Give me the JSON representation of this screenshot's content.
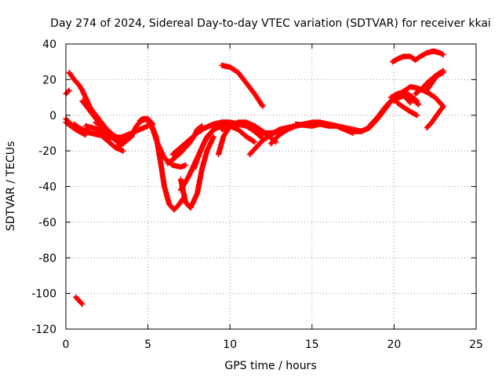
{
  "chart_data": {
    "type": "scatter",
    "title": "Day 274 of 2024, Sidereal Day-to-day VTEC variation (SDTVAR) for receiver kkai",
    "xlabel": "GPS time / hours",
    "ylabel": "SDTVAR / TECUs",
    "xlim": [
      0,
      25
    ],
    "ylim": [
      -120,
      40
    ],
    "xticks": [
      0,
      5,
      10,
      15,
      20,
      25
    ],
    "yticks": [
      -120,
      -100,
      -80,
      -60,
      -40,
      -20,
      0,
      20,
      40
    ],
    "grid": true,
    "legend": "none",
    "marker": "+",
    "color": "#ff0000",
    "tracks": [
      {
        "x": [
          0.0,
          0.2
        ],
        "y": [
          12,
          14
        ]
      },
      {
        "x": [
          0.2,
          0.5,
          0.8,
          1.0,
          1.2,
          1.5,
          2.0,
          2.5,
          3.0,
          3.3
        ],
        "y": [
          24,
          20,
          17,
          14,
          10,
          4,
          -2,
          -8,
          -12,
          -14
        ]
      },
      {
        "x": [
          0.0,
          0.3,
          0.6,
          1.0
        ],
        "y": [
          -2,
          -5,
          -7,
          -9
        ]
      },
      {
        "x": [
          0.0,
          0.3,
          0.6,
          1.0,
          1.2
        ],
        "y": [
          -4,
          -6,
          -8,
          -10,
          -11
        ]
      },
      {
        "x": [
          0.5,
          0.8,
          1.0,
          1.5,
          2.0,
          2.5,
          3.0,
          3.5,
          4.0,
          4.5,
          5.0
        ],
        "y": [
          -5,
          -7,
          -8,
          -10,
          -11,
          -12,
          -13,
          -12,
          -10,
          -8,
          -6
        ]
      },
      {
        "x": [
          1.0,
          1.5,
          2.0,
          2.5,
          3.0
        ],
        "y": [
          8,
          2,
          -4,
          -8,
          -12
        ]
      },
      {
        "x": [
          1.2,
          1.6,
          2.0,
          2.5,
          3.0,
          3.5,
          4.0
        ],
        "y": [
          -6,
          -7,
          -8,
          -10,
          -12,
          -13,
          -12
        ]
      },
      {
        "x": [
          1.8,
          2.2,
          2.6,
          3.0,
          3.5
        ],
        "y": [
          -4,
          -6,
          -10,
          -14,
          -16
        ]
      },
      {
        "x": [
          2.0,
          2.5,
          3.0,
          3.5
        ],
        "y": [
          -10,
          -14,
          -18,
          -20
        ]
      },
      {
        "x": [
          3.0,
          3.3,
          3.6,
          4.0,
          4.3,
          4.6,
          5.0,
          5.3
        ],
        "y": [
          -18,
          -17,
          -15,
          -12,
          -6,
          -3,
          -2,
          -5
        ]
      },
      {
        "x": [
          4.5,
          4.7,
          5.0,
          5.2,
          5.5,
          5.8,
          6.0,
          6.3,
          6.6,
          6.9,
          7.2
        ],
        "y": [
          -3,
          -2,
          -2,
          -5,
          -12,
          -28,
          -40,
          -50,
          -53,
          -50,
          -46
        ]
      },
      {
        "x": [
          5.0,
          5.3,
          5.6,
          6.0,
          6.5,
          7.0,
          7.3
        ],
        "y": [
          -3,
          -8,
          -16,
          -24,
          -28,
          -29,
          -28
        ]
      },
      {
        "x": [
          6.2,
          6.5,
          7.0,
          7.5,
          7.8,
          8.0,
          8.3
        ],
        "y": [
          -27,
          -25,
          -21,
          -16,
          -12,
          -8,
          -6
        ]
      },
      {
        "x": [
          6.5,
          7.0,
          7.5,
          8.0,
          8.5,
          9.0,
          9.5,
          10.0
        ],
        "y": [
          -22,
          -18,
          -14,
          -10,
          -7,
          -5,
          -4,
          -4
        ]
      },
      {
        "x": [
          7.0,
          7.3,
          7.6,
          8.0,
          8.3,
          8.6,
          9.0
        ],
        "y": [
          -36,
          -49,
          -52,
          -44,
          -30,
          -20,
          -12
        ]
      },
      {
        "x": [
          7.0,
          7.5,
          8.0,
          8.5,
          9.0,
          9.5
        ],
        "y": [
          -42,
          -34,
          -24,
          -14,
          -8,
          -4
        ]
      },
      {
        "x": [
          7.8,
          8.2,
          8.6,
          9.0,
          9.5,
          10.0,
          10.5,
          11.0,
          11.5
        ],
        "y": [
          -30,
          -20,
          -12,
          -8,
          -6,
          -6,
          -8,
          -12,
          -15
        ]
      },
      {
        "x": [
          8.5,
          9.0,
          9.5,
          10.0,
          10.5,
          11.0,
          11.5,
          12.0
        ],
        "y": [
          -7,
          -5,
          -4,
          -4,
          -5,
          -6,
          -9,
          -13
        ]
      },
      {
        "x": [
          9.3,
          9.6,
          10.0,
          10.5,
          11.0,
          11.5,
          12.0,
          12.4,
          12.8
        ],
        "y": [
          -22,
          -12,
          -6,
          -4,
          -4,
          -6,
          -9,
          -12,
          -15
        ]
      },
      {
        "x": [
          9.5,
          10.0,
          10.5,
          11.0,
          11.5
        ],
        "y": [
          -8,
          -6,
          -5,
          -5,
          -6
        ]
      },
      {
        "x": [
          9.5,
          10.0,
          10.5,
          11.0,
          11.5,
          12.0
        ],
        "y": [
          28,
          27,
          24,
          18,
          12,
          5
        ]
      },
      {
        "x": [
          11.2,
          11.6,
          12.0,
          12.5,
          13.0,
          14.0
        ],
        "y": [
          -22,
          -18,
          -14,
          -11,
          -8,
          -6
        ]
      },
      {
        "x": [
          11.5,
          12.0,
          12.5,
          13.0,
          13.5,
          14.0,
          14.5,
          15.0,
          15.5,
          16.0,
          16.5,
          17.0,
          17.5,
          18.0
        ],
        "y": [
          -9,
          -10,
          -10,
          -9,
          -7,
          -6,
          -5,
          -5,
          -5,
          -6,
          -6,
          -7,
          -8,
          -9
        ]
      },
      {
        "x": [
          12.5,
          13.0,
          13.5,
          14.0,
          14.5,
          15.0,
          15.5,
          16.0,
          16.5,
          17.0,
          17.5,
          18.0,
          18.5
        ],
        "y": [
          -16,
          -11,
          -8,
          -6,
          -5,
          -4,
          -4,
          -5,
          -6,
          -8,
          -9,
          -9,
          -7
        ]
      },
      {
        "x": [
          14.0,
          15.0,
          15.5,
          16.0,
          16.5,
          17.0,
          17.5
        ],
        "y": [
          -5,
          -6,
          -5,
          -5,
          -6,
          -8,
          -10
        ]
      },
      {
        "x": [
          17.0,
          17.5,
          18.0,
          18.5,
          19.0,
          19.5,
          20.0,
          20.5,
          21.0,
          21.5
        ],
        "y": [
          -8,
          -9,
          -9,
          -7,
          -2,
          4,
          10,
          11,
          10,
          6
        ]
      },
      {
        "x": [
          18.5,
          19.0,
          19.5,
          20.0,
          20.5,
          21.0,
          21.5,
          22.0,
          22.5,
          23.0
        ],
        "y": [
          -6,
          -1,
          5,
          10,
          13,
          16,
          15,
          13,
          10,
          5
        ]
      },
      {
        "x": [
          19.8,
          20.2,
          20.6,
          21.0,
          21.4
        ],
        "y": [
          10,
          12,
          13,
          11,
          8
        ]
      },
      {
        "x": [
          20.0,
          20.3,
          20.6,
          21.0
        ],
        "y": [
          8,
          10,
          11,
          7
        ]
      },
      {
        "x": [
          20.2,
          20.5,
          21.0,
          21.4
        ],
        "y": [
          7,
          5,
          2,
          0
        ]
      },
      {
        "x": [
          19.9,
          20.3,
          20.6,
          21.0,
          21.3,
          21.6,
          22.0,
          22.4,
          22.8,
          23.0
        ],
        "y": [
          30,
          32,
          33,
          33,
          31,
          33,
          35,
          36,
          35,
          34
        ]
      },
      {
        "x": [
          21.3,
          21.7,
          22.0,
          22.5,
          23.0
        ],
        "y": [
          12,
          15,
          18,
          22,
          25
        ]
      },
      {
        "x": [
          22.0,
          22.3,
          22.6,
          23.0
        ],
        "y": [
          -7,
          -4,
          0,
          5
        ]
      },
      {
        "x": [
          22.0,
          22.3,
          22.6,
          23.0
        ],
        "y": [
          14,
          18,
          22,
          24
        ]
      },
      {
        "x": [
          0.6,
          0.8,
          1.0
        ],
        "y": [
          -102,
          -104,
          -106
        ]
      }
    ]
  }
}
